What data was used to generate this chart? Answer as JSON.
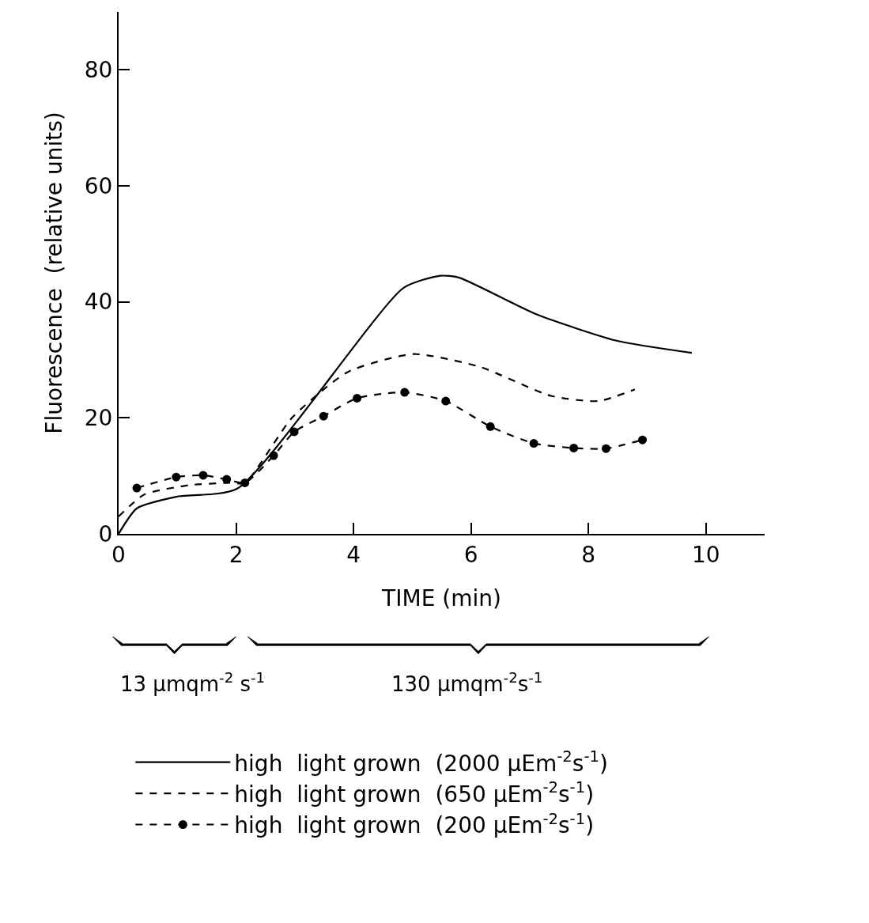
{
  "chart_data": {
    "type": "line",
    "xlabel": "TIME (min)",
    "ylabel": "Fluorescence  (relative units)",
    "xlim": [
      0,
      11
    ],
    "xticks": [
      0,
      2,
      4,
      6,
      8,
      10
    ],
    "ylim": [
      0,
      90
    ],
    "yticks": [
      0,
      20,
      40,
      60,
      80
    ],
    "grid": false,
    "legend": "bottom",
    "annotations": [
      "13 μmqm$^{-2}$ s$^{-1}$",
      "130 μmqm$^{-2}$s$^{-1}$"
    ],
    "series": [
      {
        "name": "high  light grown  (2000 μEm$^{-2}$s$^{-1}$)",
        "color": "#000000",
        "line_style": "solid",
        "marker": "none",
        "x": [
          0,
          0.31,
          0.98,
          2.02,
          4.85,
          5.48,
          5.79,
          7.13,
          8.48,
          9.76
        ],
        "values": [
          0,
          4.4,
          6.4,
          7.8,
          42.4,
          44.5,
          44.2,
          37.8,
          33.3,
          31.2
        ]
      },
      {
        "name": "high  light grown  (650 μEm$^{-2}$s$^{-1}$)",
        "color": "#000000",
        "line_style": "dashed",
        "marker": "none",
        "x": [
          0,
          0.44,
          1.21,
          1.88,
          2.15,
          2.96,
          3.9,
          5.02,
          6.15,
          7.36,
          8.17,
          8.79
        ],
        "values": [
          3,
          6.8,
          8.4,
          8.8,
          8.8,
          20.1,
          27.9,
          31.0,
          28.8,
          23.8,
          22.9,
          24.9
        ]
      },
      {
        "name": "high  light grown  (200 μEm$^{-2}$s$^{-1}$)",
        "color": "#000000",
        "line_style": "dashed",
        "marker": "circle",
        "x": [
          0.31,
          0.98,
          1.44,
          1.84,
          2.15,
          2.64,
          2.99,
          3.49,
          4.06,
          4.87,
          5.57,
          6.33,
          7.07,
          7.75,
          8.3,
          8.92
        ],
        "values": [
          7.9,
          9.8,
          10.1,
          9.4,
          8.8,
          13.5,
          17.6,
          20.3,
          23.4,
          24.4,
          22.9,
          18.5,
          15.6,
          14.8,
          14.7,
          16.2
        ]
      }
    ]
  }
}
